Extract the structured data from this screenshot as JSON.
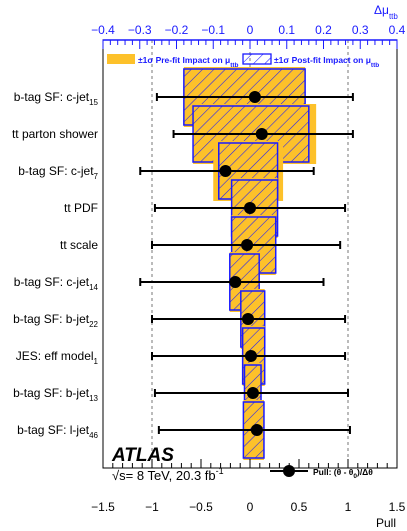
{
  "chart_data": {
    "type": "scatter",
    "atlas_label": "ATLAS",
    "energy_label": "√s= 8 TeV, 20.3 fb",
    "energy_sup": "-1",
    "xlabel_bottom": "Pull",
    "xlabel_top": "Δμ",
    "xlabel_top_sub": "ttb",
    "xlim_bottom": [
      -1.5,
      1.5
    ],
    "xlim_top": [
      -0.4,
      0.4
    ],
    "xticks_bottom": [
      "−1.5",
      "−1",
      "−0.5",
      "0",
      "0.5",
      "1",
      "1.5"
    ],
    "xticks_bottom_values": [
      -1.5,
      -1,
      -0.5,
      0,
      0.5,
      1,
      1.5
    ],
    "xticks_top": [
      "−0.4",
      "−0.3",
      "−0.2",
      "−0.1",
      "0",
      "0.1",
      "0.2",
      "0.3",
      "0.4"
    ],
    "xticks_top_values": [
      -0.4,
      -0.3,
      -0.2,
      -0.1,
      0,
      0.1,
      0.2,
      0.3,
      0.4
    ],
    "legend": {
      "prefit_label": "±1σ Pre-fit Impact on μ",
      "prefit_sub": "ttb",
      "postfit_label": "±1σ Post-fit Impact on μ",
      "postfit_sub": "ttb",
      "pull_label": "Pull: (θ - θ",
      "pull_sub": "0",
      "pull_label_end": ")/Δθ"
    },
    "colors": {
      "axis_top": "#1a1aff",
      "prefit": "#fdc12a",
      "postfit_edge": "#1a1aff",
      "points": "#000000"
    },
    "nuisance_parameters": [
      {
        "label": "b-tag SF: c-jet",
        "sub": "15",
        "pull": 0.05,
        "pull_lo": -0.95,
        "pull_hi": 1.05,
        "prefit_lo": -0.18,
        "prefit_hi": 0.15,
        "postfit_lo": -0.18,
        "postfit_hi": 0.15
      },
      {
        "label": "tt parton shower",
        "sub": "",
        "pull": 0.12,
        "pull_lo": -0.78,
        "pull_hi": 1.05,
        "prefit_lo": -0.155,
        "prefit_hi": 0.18,
        "postfit_lo": -0.155,
        "postfit_hi": 0.16
      },
      {
        "label": "b-tag SF: c-jet",
        "sub": "7",
        "pull": -0.25,
        "pull_lo": -1.12,
        "pull_hi": 0.65,
        "prefit_lo": -0.1,
        "prefit_hi": 0.09,
        "postfit_lo": -0.085,
        "postfit_hi": 0.075
      },
      {
        "label": "tt PDF",
        "sub": "",
        "pull": 0.0,
        "pull_lo": -0.97,
        "pull_hi": 0.97,
        "prefit_lo": -0.05,
        "prefit_hi": 0.075,
        "postfit_lo": -0.05,
        "postfit_hi": 0.075
      },
      {
        "label": "tt scale",
        "sub": "",
        "pull": -0.03,
        "pull_lo": -1.0,
        "pull_hi": 0.92,
        "prefit_lo": -0.05,
        "prefit_hi": 0.07,
        "postfit_lo": -0.05,
        "postfit_hi": 0.07
      },
      {
        "label": "b-tag SF: c-jet",
        "sub": "14",
        "pull": -0.15,
        "pull_lo": -1.12,
        "pull_hi": 0.75,
        "prefit_lo": -0.055,
        "prefit_hi": 0.025,
        "postfit_lo": -0.055,
        "postfit_hi": 0.025
      },
      {
        "label": "b-tag SF: b-jet",
        "sub": "22",
        "pull": -0.02,
        "pull_lo": -1.0,
        "pull_hi": 0.97,
        "prefit_lo": -0.025,
        "prefit_hi": 0.04,
        "postfit_lo": -0.025,
        "postfit_hi": 0.04
      },
      {
        "label": "JES: eff model",
        "sub": "1",
        "pull": 0.01,
        "pull_lo": -1.0,
        "pull_hi": 0.97,
        "prefit_lo": -0.02,
        "prefit_hi": 0.04,
        "postfit_lo": -0.02,
        "postfit_hi": 0.04
      },
      {
        "label": "b-tag SF: b-jet",
        "sub": "13",
        "pull": 0.03,
        "pull_lo": -0.97,
        "pull_hi": 1.0,
        "prefit_lo": -0.015,
        "prefit_hi": 0.03,
        "postfit_lo": -0.015,
        "postfit_hi": 0.03
      },
      {
        "label": "b-tag SF: l-jet",
        "sub": "46",
        "pull": 0.07,
        "pull_lo": -0.93,
        "pull_hi": 1.02,
        "prefit_lo": -0.018,
        "prefit_hi": 0.038,
        "postfit_lo": -0.018,
        "postfit_hi": 0.038
      }
    ]
  }
}
